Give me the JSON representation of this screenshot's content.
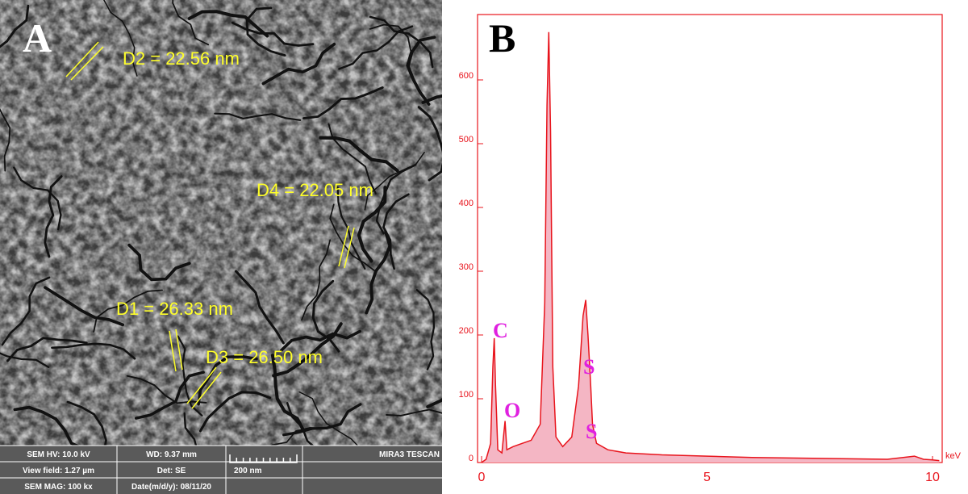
{
  "chart_data": {
    "type": "line",
    "panel_label": "B",
    "x_unit": "keV",
    "series": [
      {
        "color": "#e8141c",
        "fill": "#f4b6c4",
        "x": [
          0,
          0.1,
          0.2,
          0.25,
          0.28,
          0.31,
          0.36,
          0.45,
          0.52,
          0.56,
          0.7,
          0.9,
          1.1,
          1.3,
          1.4,
          1.45,
          1.49,
          1.53,
          1.58,
          1.65,
          1.8,
          2.0,
          2.15,
          2.25,
          2.31,
          2.36,
          2.42,
          2.46,
          2.55,
          2.8,
          3.2,
          4,
          5,
          6,
          7,
          8,
          9,
          9.6,
          9.8,
          10,
          10.15
        ],
        "values": [
          0,
          5,
          30,
          150,
          195,
          120,
          20,
          15,
          65,
          20,
          25,
          30,
          35,
          60,
          250,
          560,
          675,
          520,
          150,
          40,
          25,
          40,
          120,
          230,
          255,
          200,
          120,
          60,
          30,
          20,
          15,
          12,
          10,
          8,
          7,
          6,
          5,
          10,
          5,
          4,
          3
        ]
      }
    ],
    "peak_labels": [
      "C",
      "O",
      "S",
      "S"
    ],
    "xlim": [
      0,
      10.3
    ],
    "ylim": [
      0,
      700
    ],
    "xticks": [
      0,
      5,
      10
    ],
    "yticks": [
      0,
      100,
      200,
      300,
      400,
      500,
      600
    ]
  },
  "sem_panel": {
    "panel_label": "A",
    "measurements": [
      "D2 = 22.56 nm",
      "D4 = 22.05 nm",
      "D1 = 26.33 nm",
      "D3 = 26.50 nm"
    ],
    "info_bar": [
      [
        "SEM HV: 10.0 kV",
        "WD: 9.37 mm",
        "",
        "MIRA3 TESCAN"
      ],
      [
        "View field: 1.27 µm",
        "Det: SE",
        "200 nm"
      ],
      [
        "SEM MAG: 100 kx",
        "Date(m/d/y): 08/11/20"
      ]
    ]
  }
}
